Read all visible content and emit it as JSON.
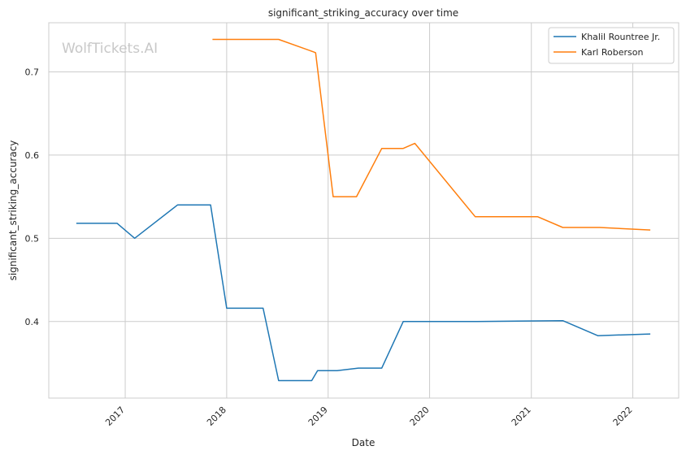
{
  "chart_data": {
    "type": "line",
    "title": "significant_striking_accuracy over time",
    "xlabel": "Date",
    "ylabel": "significant_striking_accuracy",
    "watermark": "WolfTickets.AI",
    "x_ticks": [
      "2017",
      "2018",
      "2019",
      "2020",
      "2021",
      "2022"
    ],
    "y_ticks": [
      "0.4",
      "0.5",
      "0.6",
      "0.7"
    ],
    "xlim": [
      "2016-04-01",
      "2022-06-15"
    ],
    "ylim": [
      0.308,
      0.759
    ],
    "grid": true,
    "legend_position": "top-right",
    "colors": {
      "grid": "#cccccc",
      "axes": "#cccccc",
      "watermark": "#c8c8c8"
    },
    "series": [
      {
        "name": "Khalil Rountree Jr.",
        "color": "#1f77b4",
        "points": [
          [
            "2016-07-09",
            0.518
          ],
          [
            "2016-12-03",
            0.518
          ],
          [
            "2017-02-04",
            0.5
          ],
          [
            "2017-07-08",
            0.54
          ],
          [
            "2017-11-04",
            0.54
          ],
          [
            "2018-01-01",
            0.416
          ],
          [
            "2018-05-12",
            0.416
          ],
          [
            "2018-07-07",
            0.329
          ],
          [
            "2018-11-03",
            0.329
          ],
          [
            "2018-11-24",
            0.341
          ],
          [
            "2019-02-02",
            0.341
          ],
          [
            "2019-04-20",
            0.344
          ],
          [
            "2019-07-13",
            0.344
          ],
          [
            "2019-09-28",
            0.4
          ],
          [
            "2020-06-20",
            0.4
          ],
          [
            "2021-04-24",
            0.401
          ],
          [
            "2021-08-28",
            0.383
          ],
          [
            "2022-03-05",
            0.385
          ]
        ]
      },
      {
        "name": "Karl Roberson",
        "color": "#ff7f0e",
        "points": [
          [
            "2017-11-11",
            0.739
          ],
          [
            "2018-07-07",
            0.739
          ],
          [
            "2018-11-10",
            0.724
          ],
          [
            "2018-11-17",
            0.723
          ],
          [
            "2019-01-19",
            0.55
          ],
          [
            "2019-04-13",
            0.55
          ],
          [
            "2019-07-13",
            0.608
          ],
          [
            "2019-09-28",
            0.608
          ],
          [
            "2019-11-09",
            0.614
          ],
          [
            "2020-06-13",
            0.526
          ],
          [
            "2021-01-23",
            0.526
          ],
          [
            "2021-04-24",
            0.513
          ],
          [
            "2021-09-04",
            0.513
          ],
          [
            "2022-03-05",
            0.51
          ]
        ]
      }
    ]
  }
}
